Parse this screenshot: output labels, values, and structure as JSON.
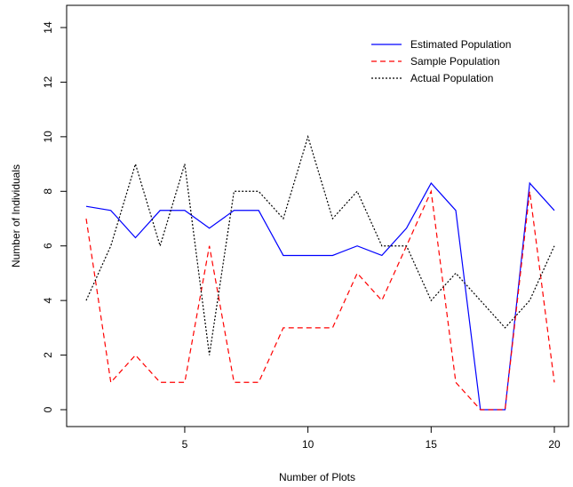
{
  "chart_data": {
    "type": "line",
    "title": "",
    "xlabel": "Number of Plots",
    "ylabel": "Number of Individuals",
    "xlim": [
      1,
      20
    ],
    "ylim": [
      0,
      14
    ],
    "x_ticks": [
      5,
      10,
      15,
      20
    ],
    "y_ticks": [
      0,
      2,
      4,
      6,
      8,
      10,
      12,
      14
    ],
    "grid": false,
    "legend_position": "top-right",
    "x": [
      1,
      2,
      3,
      4,
      5,
      6,
      7,
      8,
      9,
      10,
      11,
      12,
      13,
      14,
      15,
      16,
      17,
      18,
      19,
      20
    ],
    "series": [
      {
        "name": "Estimated Population",
        "color": "#0000ff",
        "line_style": "solid",
        "values": [
          7.45,
          7.3,
          6.3,
          7.3,
          7.3,
          6.65,
          7.3,
          7.3,
          5.65,
          5.65,
          5.65,
          6.0,
          5.65,
          6.65,
          8.3,
          7.3,
          0,
          0,
          8.3,
          7.3
        ]
      },
      {
        "name": "Sample Population",
        "color": "#ff0000",
        "line_style": "dashed",
        "values": [
          7,
          1,
          2,
          1,
          1,
          6,
          1,
          1,
          3,
          3,
          3,
          5,
          4,
          6,
          8,
          1,
          0,
          0,
          8,
          1
        ]
      },
      {
        "name": "Actual Population",
        "color": "#000000",
        "line_style": "dotted",
        "values": [
          4,
          6,
          9,
          6,
          9,
          2,
          8,
          8,
          7,
          10,
          7,
          8,
          6,
          6,
          4,
          5,
          4,
          3,
          4,
          6
        ]
      }
    ]
  }
}
